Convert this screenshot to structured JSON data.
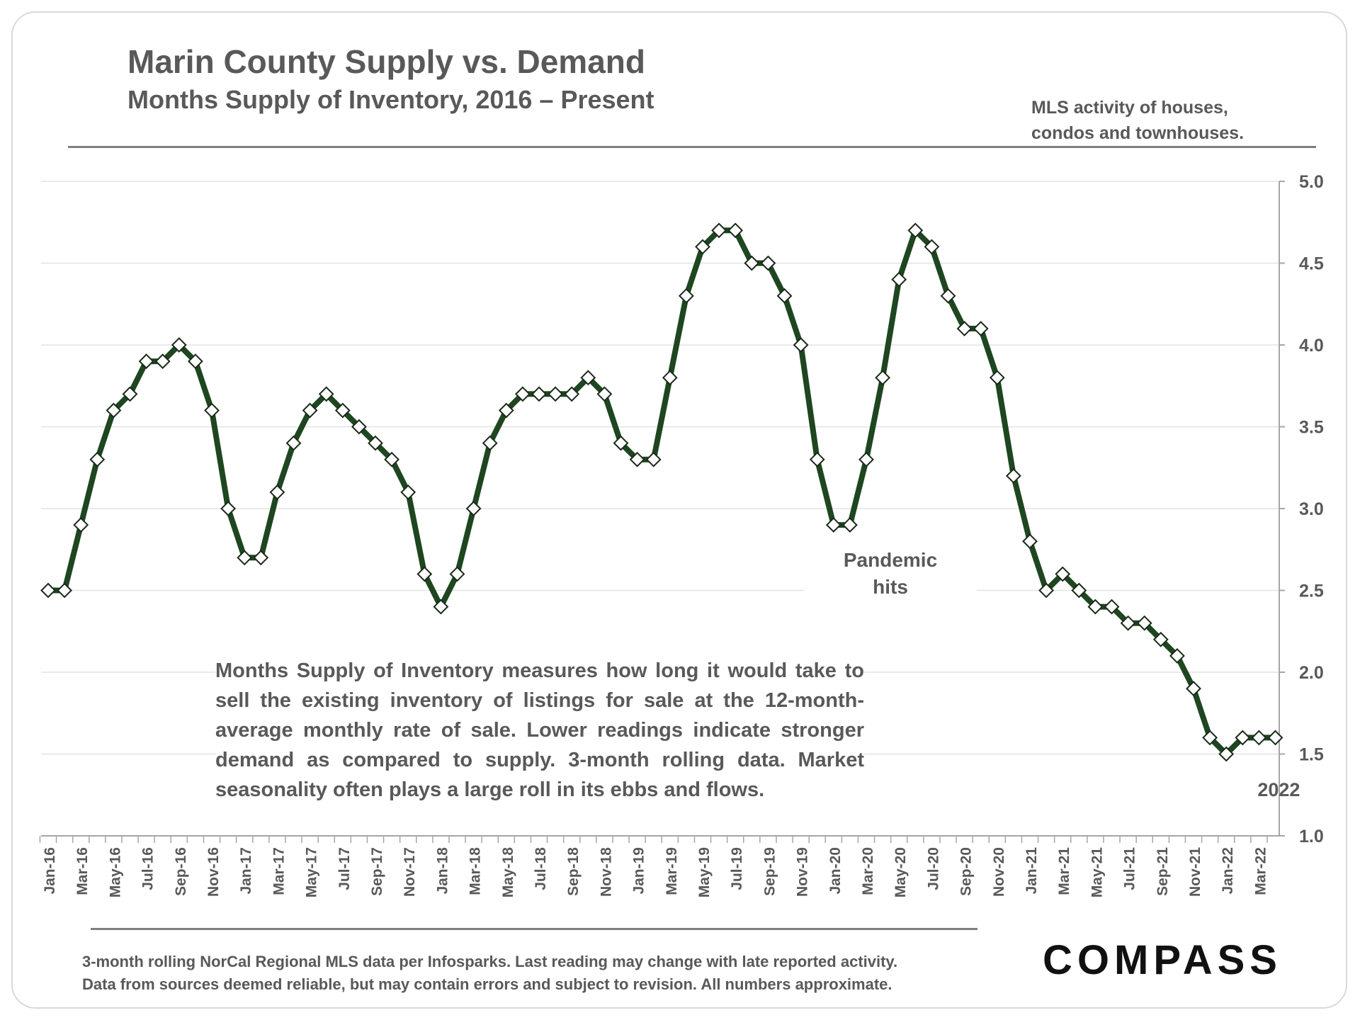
{
  "header": {
    "title": "Marin County Supply vs. Demand",
    "subtitle": "Months Supply of Inventory, 2016 – Present",
    "note_line1": "MLS activity of houses,",
    "note_line2": "condos and townhouses."
  },
  "description": "Months Supply of Inventory measures how long it would take to sell the existing inventory of listings for sale at the 12-month-average monthly rate of sale. Lower readings indicate stronger demand as compared to supply. 3-month rolling data. Market seasonality often plays a large roll in its ebbs and flows.",
  "footer": {
    "line1": "3-month rolling NorCal Regional MLS data per Infosparks. Last reading may change with late reported activity.",
    "line2": "Data from sources deemed reliable, but may contain errors and subject to revision. All numbers approximate.",
    "logo": "COMPASS"
  },
  "colors": {
    "line": "#1e4620",
    "marker_fill": "#ffffff",
    "grid": "#e3e3e3",
    "text": "#595959"
  },
  "chart_data": {
    "type": "line",
    "title": "Marin County Supply vs. Demand",
    "subtitle": "Months Supply of Inventory, 2016 – Present",
    "series": [
      {
        "name": "Months Supply of Inventory",
        "values": [
          2.5,
          2.5,
          2.9,
          3.3,
          3.6,
          3.7,
          3.9,
          3.9,
          4.0,
          3.9,
          3.6,
          3.0,
          2.7,
          2.7,
          3.1,
          3.4,
          3.6,
          3.7,
          3.6,
          3.5,
          3.4,
          3.3,
          3.1,
          2.6,
          2.4,
          2.6,
          3.0,
          3.4,
          3.6,
          3.7,
          3.7,
          3.7,
          3.7,
          3.8,
          3.7,
          3.4,
          3.3,
          3.3,
          3.8,
          4.3,
          4.6,
          4.7,
          4.7,
          4.5,
          4.5,
          4.3,
          4.0,
          3.3,
          2.9,
          2.9,
          3.3,
          3.8,
          4.4,
          4.7,
          4.6,
          4.3,
          4.1,
          4.1,
          3.8,
          3.2,
          2.8,
          2.5,
          2.6,
          2.5,
          2.4,
          2.4,
          2.3,
          2.3,
          2.2,
          2.1,
          1.9,
          1.6,
          1.5,
          1.6,
          1.6,
          1.6
        ]
      }
    ],
    "tick_labels": [
      "Jan-16",
      "Mar-16",
      "May-16",
      "Jul-16",
      "Sep-16",
      "Nov-16",
      "Jan-17",
      "Mar-17",
      "May-17",
      "Jul-17",
      "Sep-17",
      "Nov-17",
      "Jan-18",
      "Mar-18",
      "May-18",
      "Jul-18",
      "Sep-18",
      "Nov-18",
      "Jan-19",
      "Mar-19",
      "May-19",
      "Jul-19",
      "Sep-19",
      "Nov-19",
      "Jan-20",
      "Mar-20",
      "May-20",
      "Jul-20",
      "Sep-20",
      "Nov-20",
      "Jan-21",
      "Mar-21",
      "May-21",
      "Jul-21",
      "Sep-21",
      "Nov-21",
      "Jan-22",
      "Mar-22"
    ],
    "tick_every_months": 2,
    "ylim": [
      1.0,
      5.0
    ],
    "y_ticks": [
      "1.0",
      "1.5",
      "2.0",
      "2.5",
      "3.0",
      "3.5",
      "4.0",
      "4.5",
      "5.0"
    ],
    "y_axis_side": "right",
    "grid": true,
    "annotations": [
      {
        "line1": "Pandemic",
        "line2": "hits",
        "index": 50
      },
      {
        "line1": "2022",
        "index": 74
      }
    ]
  }
}
